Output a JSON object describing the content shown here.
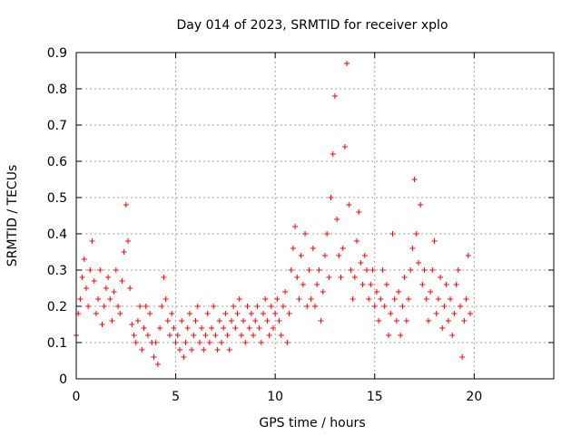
{
  "chart_data": {
    "type": "scatter",
    "title": "Day 014 of 2023, SRMTID for receiver xplo",
    "xlabel": "GPS time / hours",
    "ylabel": "SRMTID / TECUs",
    "xlim": [
      0,
      24
    ],
    "ylim": [
      0,
      0.9
    ],
    "xticks": [
      0,
      5,
      10,
      15,
      20
    ],
    "yticks": [
      0,
      0.1,
      0.2,
      0.3,
      0.4,
      0.5,
      0.6,
      0.7,
      0.8,
      0.9
    ],
    "grid": true,
    "marker": "+",
    "color": "#ff0000",
    "series": [
      {
        "name": "SRMTID",
        "points": [
          [
            0.0,
            0.12
          ],
          [
            0.1,
            0.18
          ],
          [
            0.2,
            0.22
          ],
          [
            0.3,
            0.28
          ],
          [
            0.4,
            0.33
          ],
          [
            0.5,
            0.25
          ],
          [
            0.6,
            0.2
          ],
          [
            0.7,
            0.3
          ],
          [
            0.8,
            0.38
          ],
          [
            0.9,
            0.27
          ],
          [
            1.0,
            0.18
          ],
          [
            1.1,
            0.22
          ],
          [
            1.2,
            0.3
          ],
          [
            1.3,
            0.15
          ],
          [
            1.4,
            0.2
          ],
          [
            1.5,
            0.25
          ],
          [
            1.6,
            0.28
          ],
          [
            1.7,
            0.22
          ],
          [
            1.8,
            0.16
          ],
          [
            1.9,
            0.24
          ],
          [
            2.0,
            0.3
          ],
          [
            2.1,
            0.2
          ],
          [
            2.2,
            0.18
          ],
          [
            2.3,
            0.27
          ],
          [
            2.4,
            0.35
          ],
          [
            2.5,
            0.48
          ],
          [
            2.6,
            0.38
          ],
          [
            2.7,
            0.25
          ],
          [
            2.8,
            0.15
          ],
          [
            2.9,
            0.12
          ],
          [
            3.0,
            0.1
          ],
          [
            3.1,
            0.16
          ],
          [
            3.2,
            0.2
          ],
          [
            3.3,
            0.08
          ],
          [
            3.4,
            0.14
          ],
          [
            3.5,
            0.2
          ],
          [
            3.6,
            0.12
          ],
          [
            3.7,
            0.18
          ],
          [
            3.8,
            0.1
          ],
          [
            3.9,
            0.06
          ],
          [
            4.0,
            0.1
          ],
          [
            4.1,
            0.04
          ],
          [
            4.2,
            0.14
          ],
          [
            4.3,
            0.2
          ],
          [
            4.4,
            0.28
          ],
          [
            4.5,
            0.22
          ],
          [
            4.6,
            0.16
          ],
          [
            4.7,
            0.12
          ],
          [
            4.8,
            0.18
          ],
          [
            4.9,
            0.14
          ],
          [
            5.0,
            0.1
          ],
          [
            5.1,
            0.12
          ],
          [
            5.2,
            0.08
          ],
          [
            5.3,
            0.16
          ],
          [
            5.4,
            0.06
          ],
          [
            5.5,
            0.1
          ],
          [
            5.6,
            0.14
          ],
          [
            5.7,
            0.18
          ],
          [
            5.8,
            0.08
          ],
          [
            5.9,
            0.12
          ],
          [
            6.0,
            0.16
          ],
          [
            6.1,
            0.2
          ],
          [
            6.2,
            0.1
          ],
          [
            6.3,
            0.14
          ],
          [
            6.4,
            0.08
          ],
          [
            6.5,
            0.12
          ],
          [
            6.6,
            0.18
          ],
          [
            6.7,
            0.1
          ],
          [
            6.8,
            0.14
          ],
          [
            6.9,
            0.2
          ],
          [
            7.0,
            0.12
          ],
          [
            7.1,
            0.08
          ],
          [
            7.2,
            0.16
          ],
          [
            7.3,
            0.1
          ],
          [
            7.4,
            0.14
          ],
          [
            7.5,
            0.18
          ],
          [
            7.6,
            0.12
          ],
          [
            7.7,
            0.08
          ],
          [
            7.8,
            0.16
          ],
          [
            7.9,
            0.2
          ],
          [
            8.0,
            0.14
          ],
          [
            8.1,
            0.18
          ],
          [
            8.2,
            0.22
          ],
          [
            8.3,
            0.12
          ],
          [
            8.4,
            0.16
          ],
          [
            8.5,
            0.1
          ],
          [
            8.6,
            0.2
          ],
          [
            8.7,
            0.14
          ],
          [
            8.8,
            0.18
          ],
          [
            8.9,
            0.12
          ],
          [
            9.0,
            0.16
          ],
          [
            9.1,
            0.2
          ],
          [
            9.2,
            0.14
          ],
          [
            9.3,
            0.1
          ],
          [
            9.4,
            0.18
          ],
          [
            9.5,
            0.22
          ],
          [
            9.6,
            0.16
          ],
          [
            9.7,
            0.12
          ],
          [
            9.8,
            0.2
          ],
          [
            9.9,
            0.14
          ],
          [
            10.0,
            0.18
          ],
          [
            10.1,
            0.22
          ],
          [
            10.2,
            0.16
          ],
          [
            10.3,
            0.12
          ],
          [
            10.4,
            0.2
          ],
          [
            10.5,
            0.24
          ],
          [
            10.6,
            0.1
          ],
          [
            10.7,
            0.18
          ],
          [
            10.8,
            0.3
          ],
          [
            10.9,
            0.36
          ],
          [
            11.0,
            0.42
          ],
          [
            11.1,
            0.28
          ],
          [
            11.2,
            0.22
          ],
          [
            11.3,
            0.34
          ],
          [
            11.4,
            0.26
          ],
          [
            11.5,
            0.4
          ],
          [
            11.6,
            0.2
          ],
          [
            11.7,
            0.3
          ],
          [
            11.8,
            0.22
          ],
          [
            11.9,
            0.36
          ],
          [
            12.0,
            0.2
          ],
          [
            12.1,
            0.26
          ],
          [
            12.2,
            0.3
          ],
          [
            12.3,
            0.16
          ],
          [
            12.4,
            0.24
          ],
          [
            12.5,
            0.34
          ],
          [
            12.6,
            0.4
          ],
          [
            12.7,
            0.28
          ],
          [
            12.8,
            0.5
          ],
          [
            12.9,
            0.62
          ],
          [
            13.0,
            0.78
          ],
          [
            13.1,
            0.44
          ],
          [
            13.2,
            0.34
          ],
          [
            13.3,
            0.28
          ],
          [
            13.4,
            0.36
          ],
          [
            13.5,
            0.64
          ],
          [
            13.6,
            0.87
          ],
          [
            13.7,
            0.48
          ],
          [
            13.8,
            0.3
          ],
          [
            13.9,
            0.22
          ],
          [
            14.0,
            0.28
          ],
          [
            14.1,
            0.38
          ],
          [
            14.2,
            0.46
          ],
          [
            14.3,
            0.32
          ],
          [
            14.4,
            0.26
          ],
          [
            14.5,
            0.34
          ],
          [
            14.6,
            0.3
          ],
          [
            14.7,
            0.22
          ],
          [
            14.8,
            0.26
          ],
          [
            14.9,
            0.3
          ],
          [
            15.0,
            0.2
          ],
          [
            15.1,
            0.24
          ],
          [
            15.2,
            0.16
          ],
          [
            15.3,
            0.22
          ],
          [
            15.4,
            0.3
          ],
          [
            15.5,
            0.2
          ],
          [
            15.6,
            0.26
          ],
          [
            15.7,
            0.12
          ],
          [
            15.8,
            0.18
          ],
          [
            15.9,
            0.4
          ],
          [
            16.0,
            0.22
          ],
          [
            16.1,
            0.16
          ],
          [
            16.2,
            0.24
          ],
          [
            16.3,
            0.12
          ],
          [
            16.4,
            0.2
          ],
          [
            16.5,
            0.28
          ],
          [
            16.6,
            0.16
          ],
          [
            16.7,
            0.22
          ],
          [
            16.8,
            0.3
          ],
          [
            16.9,
            0.36
          ],
          [
            17.0,
            0.55
          ],
          [
            17.1,
            0.4
          ],
          [
            17.2,
            0.32
          ],
          [
            17.3,
            0.48
          ],
          [
            17.4,
            0.26
          ],
          [
            17.5,
            0.3
          ],
          [
            17.6,
            0.22
          ],
          [
            17.7,
            0.16
          ],
          [
            17.8,
            0.24
          ],
          [
            17.9,
            0.3
          ],
          [
            18.0,
            0.38
          ],
          [
            18.1,
            0.18
          ],
          [
            18.2,
            0.22
          ],
          [
            18.3,
            0.28
          ],
          [
            18.4,
            0.14
          ],
          [
            18.5,
            0.2
          ],
          [
            18.6,
            0.26
          ],
          [
            18.7,
            0.16
          ],
          [
            18.8,
            0.22
          ],
          [
            18.9,
            0.12
          ],
          [
            19.0,
            0.18
          ],
          [
            19.1,
            0.26
          ],
          [
            19.2,
            0.3
          ],
          [
            19.3,
            0.2
          ],
          [
            19.4,
            0.06
          ],
          [
            19.5,
            0.16
          ],
          [
            19.6,
            0.22
          ],
          [
            19.7,
            0.34
          ],
          [
            19.8,
            0.18
          ]
        ]
      }
    ]
  }
}
